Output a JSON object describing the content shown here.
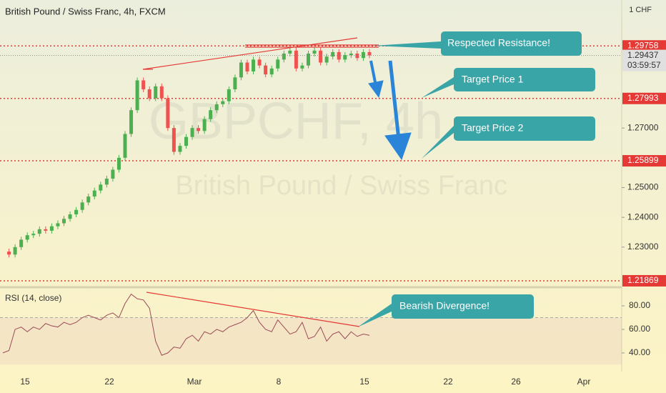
{
  "chart_data": {
    "type": "candlestick",
    "title": "British Pound / Swiss Franc, 4h, FXCM",
    "watermark_symbol": "GBPCHF, 4h",
    "watermark_name": "British Pound / Swiss Franc",
    "currency": "1 CHF",
    "up_color": "#4caf50",
    "down_color": "#ef5350",
    "candles": [
      1.2285,
      1.2275,
      1.23,
      1.2325,
      1.234,
      1.2345,
      1.236,
      1.2355,
      1.237,
      1.238,
      1.2395,
      1.241,
      1.2425,
      1.245,
      1.247,
      1.249,
      1.251,
      1.253,
      1.256,
      1.26,
      1.268,
      1.276,
      1.286,
      1.283,
      1.28,
      1.284,
      1.28,
      1.27,
      1.262,
      1.264,
      1.267,
      1.27,
      1.269,
      1.273,
      1.276,
      1.278,
      1.279,
      1.283,
      1.287,
      1.292,
      1.289,
      1.293,
      1.291,
      1.288,
      1.29,
      1.293,
      1.295,
      1.296,
      1.29,
      1.291,
      1.295,
      1.296,
      1.292,
      1.294,
      1.2955,
      1.293,
      1.2945,
      1.295,
      1.2935,
      1.2955,
      1.2944
    ],
    "ylim": [
      1.217,
      1.313
    ],
    "yticks": [
      {
        "value": 1.23,
        "label": "1.23000"
      },
      {
        "value": 1.24,
        "label": "1.24000"
      },
      {
        "value": 1.25,
        "label": "1.25000"
      },
      {
        "value": 1.27,
        "label": "1.27000"
      }
    ],
    "levels": [
      1.29758,
      1.27993,
      1.25899,
      1.21869
    ],
    "level_color": "#e53935",
    "current_price": 1.29437,
    "countdown": "03:59:57",
    "annotations": [
      "Respected Resistance!",
      "Target Price 1",
      "Target Price 2",
      "Bearish Divergence!"
    ],
    "xlabels": [
      "15",
      "22",
      "Mar",
      "8",
      "15",
      "22",
      "26",
      "Apr"
    ],
    "rsi": {
      "label": "RSI (14, close)",
      "color": "#9c4a57",
      "values": [
        40,
        42,
        60,
        62,
        58,
        62,
        60,
        65,
        63,
        62,
        66,
        64,
        66,
        70,
        72,
        70,
        68,
        72,
        74,
        70,
        82,
        90,
        86,
        85,
        78,
        50,
        38,
        40,
        45,
        44,
        52,
        55,
        50,
        58,
        56,
        60,
        58,
        62,
        64,
        66,
        70,
        76,
        66,
        60,
        58,
        68,
        62,
        56,
        58,
        66,
        52,
        54,
        62,
        50,
        56,
        58,
        52,
        58,
        54,
        56,
        55
      ],
      "ylim": [
        29,
        94
      ],
      "yticks": [
        {
          "value": 80,
          "label": "80.00"
        },
        {
          "value": 60,
          "label": "60.00"
        },
        {
          "value": 40,
          "label": "40.00"
        }
      ]
    }
  }
}
